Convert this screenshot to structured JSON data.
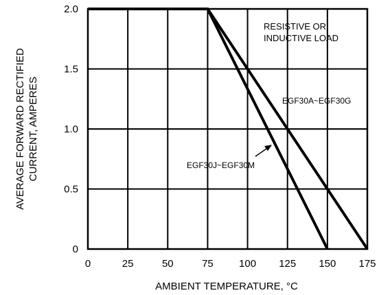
{
  "chart_data": {
    "type": "line",
    "xlabel": "AMBIENT TEMPERATURE, °C",
    "ylabel_lines": [
      "AVERAGE FORWARD RECTIFIED",
      "CURRENT, AMPERES"
    ],
    "xlim": [
      0,
      175
    ],
    "ylim": [
      0,
      2.0
    ],
    "xticks": [
      0,
      25,
      50,
      75,
      100,
      125,
      150,
      175
    ],
    "yticks": [
      0,
      0.5,
      1.0,
      1.5,
      2.0
    ],
    "xtick_labels": [
      "0",
      "25",
      "50",
      "75",
      "100",
      "125",
      "150",
      "175"
    ],
    "ytick_labels": [
      "0",
      "0.5",
      "1.0",
      "1.5",
      "2.0"
    ],
    "grid": true,
    "annotation_lines": [
      "RESISTIVE OR",
      "INDUCTIVE LOAD"
    ],
    "series": [
      {
        "name": "EGF30A~EGF30G",
        "x": [
          0,
          75,
          175
        ],
        "y": [
          2.0,
          2.0,
          0
        ]
      },
      {
        "name": "EGF30J~EGF30M",
        "x": [
          0,
          75,
          150
        ],
        "y": [
          2.0,
          2.0,
          0
        ]
      }
    ]
  }
}
